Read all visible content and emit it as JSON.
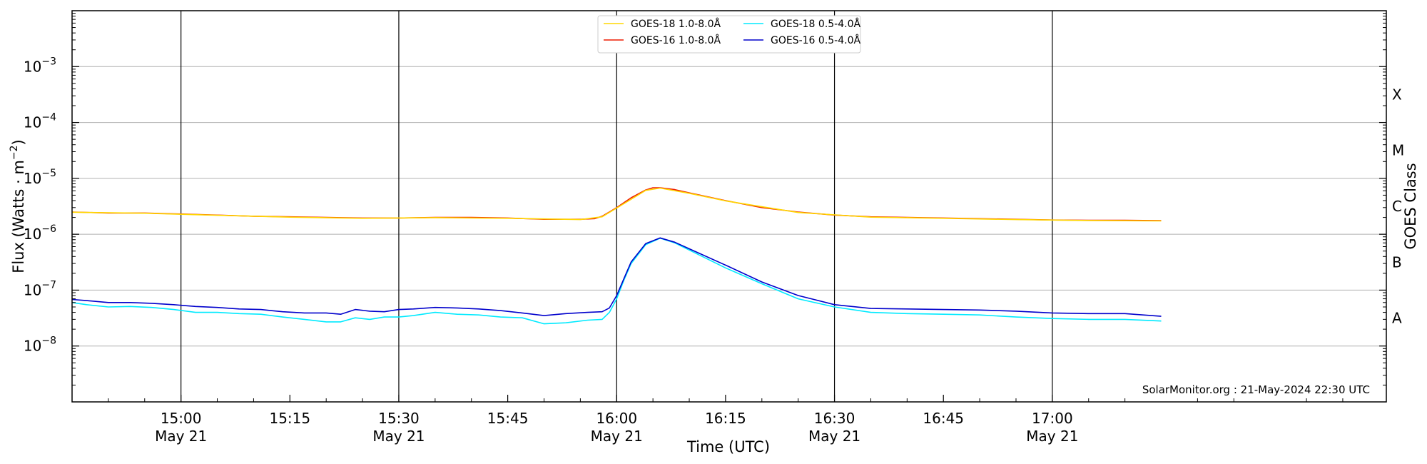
{
  "chart_data": {
    "type": "line",
    "xlabel": "Time (UTC)",
    "ylabel": "Flux (Watts · m",
    "ylabel_sup": "−2",
    "ylabel_end": ")",
    "y2label": "GOES Class",
    "y_scale": "log",
    "ylim": [
      1e-09,
      0.01
    ],
    "xlim_minutes": [
      885,
      1066
    ],
    "x_tick_labels": [
      {
        "t": 900,
        "time": "15:00",
        "date": "May 21"
      },
      {
        "t": 915,
        "time": "15:15",
        "date": ""
      },
      {
        "t": 930,
        "time": "15:30",
        "date": "May 21"
      },
      {
        "t": 945,
        "time": "15:45",
        "date": ""
      },
      {
        "t": 960,
        "time": "16:00",
        "date": "May 21"
      },
      {
        "t": 975,
        "time": "16:15",
        "date": ""
      },
      {
        "t": 990,
        "time": "16:30",
        "date": "May 21"
      },
      {
        "t": 1005,
        "time": "16:45",
        "date": ""
      },
      {
        "t": 1020,
        "time": "17:00",
        "date": "May 21"
      }
    ],
    "y_tick_labels": [
      {
        "exp": -3,
        "text": "10",
        "sup": "−3"
      },
      {
        "exp": -4,
        "text": "10",
        "sup": "−4"
      },
      {
        "exp": -5,
        "text": "10",
        "sup": "−5"
      },
      {
        "exp": -6,
        "text": "10",
        "sup": "−6"
      },
      {
        "exp": -7,
        "text": "10",
        "sup": "−7"
      },
      {
        "exp": -8,
        "text": "10",
        "sup": "−8"
      }
    ],
    "goes_classes": [
      {
        "label": "X",
        "exp": -3.5
      },
      {
        "label": "M",
        "exp": -4.5
      },
      {
        "label": "C",
        "exp": -5.5
      },
      {
        "label": "B",
        "exp": -6.5
      },
      {
        "label": "A",
        "exp": -7.5
      }
    ],
    "grid_y": true,
    "vertical_lines_minutes": [
      900,
      930,
      960,
      990,
      1020
    ],
    "legend": {
      "placement": "top-center",
      "entries": [
        {
          "label": "GOES-18 1.0-8.0Å",
          "color": "#ffd700"
        },
        {
          "label": "GOES-16 1.0-8.0Å",
          "color": "#ee1c00"
        },
        {
          "label": "GOES-18 0.5-4.0Å",
          "color": "#00eaff"
        },
        {
          "label": "GOES-16 0.5-4.0Å",
          "color": "#0000cc"
        }
      ]
    },
    "annotation": "SolarMonitor.org : 21-May-2024 22:30 UTC",
    "series": [
      {
        "name": "GOES-16 1.0-8.0Å",
        "color": "#ee1c00",
        "points": [
          [
            885,
            2.5e-06
          ],
          [
            890,
            2.4e-06
          ],
          [
            895,
            2.4e-06
          ],
          [
            900,
            2.3e-06
          ],
          [
            905,
            2.2e-06
          ],
          [
            910,
            2.1e-06
          ],
          [
            915,
            2.05e-06
          ],
          [
            920,
            2e-06
          ],
          [
            925,
            1.95e-06
          ],
          [
            930,
            1.95e-06
          ],
          [
            935,
            2e-06
          ],
          [
            940,
            2e-06
          ],
          [
            945,
            1.95e-06
          ],
          [
            950,
            1.85e-06
          ],
          [
            955,
            1.85e-06
          ],
          [
            957,
            1.9e-06
          ],
          [
            958,
            2.1e-06
          ],
          [
            959,
            2.5e-06
          ],
          [
            960,
            3e-06
          ],
          [
            962,
            4.5e-06
          ],
          [
            964,
            6.2e-06
          ],
          [
            965,
            6.8e-06
          ],
          [
            966,
            6.8e-06
          ],
          [
            968,
            6.3e-06
          ],
          [
            970,
            5.5e-06
          ],
          [
            975,
            4e-06
          ],
          [
            980,
            3e-06
          ],
          [
            985,
            2.5e-06
          ],
          [
            990,
            2.2e-06
          ],
          [
            995,
            2.05e-06
          ],
          [
            1000,
            2e-06
          ],
          [
            1005,
            1.95e-06
          ],
          [
            1010,
            1.9e-06
          ],
          [
            1015,
            1.85e-06
          ],
          [
            1020,
            1.8e-06
          ],
          [
            1025,
            1.78e-06
          ],
          [
            1030,
            1.78e-06
          ],
          [
            1035,
            1.75e-06
          ]
        ]
      },
      {
        "name": "GOES-18 1.0-8.0Å",
        "color": "#ffd700",
        "points": [
          [
            885,
            2.48e-06
          ],
          [
            895,
            2.38e-06
          ],
          [
            905,
            2.18e-06
          ],
          [
            915,
            2.02e-06
          ],
          [
            925,
            1.93e-06
          ],
          [
            935,
            1.98e-06
          ],
          [
            945,
            1.93e-06
          ],
          [
            955,
            1.83e-06
          ],
          [
            958,
            2.05e-06
          ],
          [
            960,
            2.95e-06
          ],
          [
            964,
            6.1e-06
          ],
          [
            966,
            6.7e-06
          ],
          [
            970,
            5.4e-06
          ],
          [
            975,
            3.95e-06
          ],
          [
            985,
            2.45e-06
          ],
          [
            995,
            2.02e-06
          ],
          [
            1005,
            1.93e-06
          ],
          [
            1015,
            1.83e-06
          ],
          [
            1025,
            1.76e-06
          ],
          [
            1035,
            1.73e-06
          ]
        ]
      },
      {
        "name": "GOES-18 0.5-4.0Å",
        "color": "#00eaff",
        "points": [
          [
            885,
            6e-08
          ],
          [
            887,
            5.5e-08
          ],
          [
            890,
            5e-08
          ],
          [
            893,
            5.1e-08
          ],
          [
            896,
            4.9e-08
          ],
          [
            899,
            4.5e-08
          ],
          [
            902,
            4e-08
          ],
          [
            905,
            4e-08
          ],
          [
            908,
            3.8e-08
          ],
          [
            911,
            3.7e-08
          ],
          [
            914,
            3.3e-08
          ],
          [
            917,
            3e-08
          ],
          [
            920,
            2.7e-08
          ],
          [
            922,
            2.7e-08
          ],
          [
            924,
            3.2e-08
          ],
          [
            926,
            3e-08
          ],
          [
            928,
            3.3e-08
          ],
          [
            930,
            3.3e-08
          ],
          [
            932,
            3.5e-08
          ],
          [
            935,
            4e-08
          ],
          [
            938,
            3.7e-08
          ],
          [
            941,
            3.6e-08
          ],
          [
            944,
            3.3e-08
          ],
          [
            947,
            3.2e-08
          ],
          [
            950,
            2.5e-08
          ],
          [
            953,
            2.6e-08
          ],
          [
            956,
            2.9e-08
          ],
          [
            958,
            3e-08
          ],
          [
            959,
            4e-08
          ],
          [
            960,
            7e-08
          ],
          [
            961,
            1.5e-07
          ],
          [
            962,
            3e-07
          ],
          [
            964,
            6.5e-07
          ],
          [
            966,
            8.5e-07
          ],
          [
            968,
            7e-07
          ],
          [
            971,
            4.5e-07
          ],
          [
            975,
            2.5e-07
          ],
          [
            980,
            1.3e-07
          ],
          [
            985,
            7e-08
          ],
          [
            990,
            5e-08
          ],
          [
            995,
            4e-08
          ],
          [
            1000,
            3.8e-08
          ],
          [
            1005,
            3.7e-08
          ],
          [
            1010,
            3.6e-08
          ],
          [
            1015,
            3.3e-08
          ],
          [
            1020,
            3.1e-08
          ],
          [
            1025,
            3e-08
          ],
          [
            1030,
            3e-08
          ],
          [
            1035,
            2.8e-08
          ]
        ]
      },
      {
        "name": "GOES-16 0.5-4.0Å",
        "color": "#0000cc",
        "points": [
          [
            885,
            6.8e-08
          ],
          [
            887,
            6.5e-08
          ],
          [
            890,
            6e-08
          ],
          [
            893,
            6e-08
          ],
          [
            896,
            5.8e-08
          ],
          [
            899,
            5.5e-08
          ],
          [
            902,
            5.1e-08
          ],
          [
            905,
            4.9e-08
          ],
          [
            908,
            4.6e-08
          ],
          [
            911,
            4.5e-08
          ],
          [
            914,
            4.1e-08
          ],
          [
            917,
            3.9e-08
          ],
          [
            920,
            3.9e-08
          ],
          [
            922,
            3.7e-08
          ],
          [
            924,
            4.5e-08
          ],
          [
            926,
            4.2e-08
          ],
          [
            928,
            4.1e-08
          ],
          [
            930,
            4.5e-08
          ],
          [
            932,
            4.6e-08
          ],
          [
            935,
            4.9e-08
          ],
          [
            938,
            4.8e-08
          ],
          [
            941,
            4.6e-08
          ],
          [
            944,
            4.3e-08
          ],
          [
            947,
            3.9e-08
          ],
          [
            950,
            3.5e-08
          ],
          [
            953,
            3.8e-08
          ],
          [
            956,
            4e-08
          ],
          [
            958,
            4.1e-08
          ],
          [
            959,
            4.8e-08
          ],
          [
            960,
            8e-08
          ],
          [
            961,
            1.6e-07
          ],
          [
            962,
            3.2e-07
          ],
          [
            964,
            6.8e-07
          ],
          [
            966,
            8.6e-07
          ],
          [
            968,
            7.2e-07
          ],
          [
            971,
            4.8e-07
          ],
          [
            975,
            2.8e-07
          ],
          [
            980,
            1.4e-07
          ],
          [
            985,
            8e-08
          ],
          [
            990,
            5.5e-08
          ],
          [
            995,
            4.7e-08
          ],
          [
            1000,
            4.6e-08
          ],
          [
            1005,
            4.5e-08
          ],
          [
            1010,
            4.4e-08
          ],
          [
            1015,
            4.2e-08
          ],
          [
            1020,
            3.9e-08
          ],
          [
            1025,
            3.8e-08
          ],
          [
            1030,
            3.8e-08
          ],
          [
            1035,
            3.4e-08
          ]
        ]
      }
    ]
  }
}
